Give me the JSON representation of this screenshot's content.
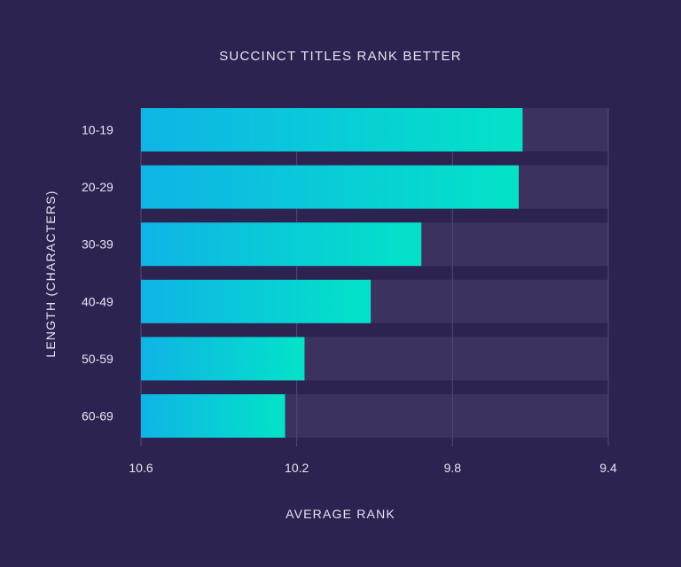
{
  "colors": {
    "background": "#2d2350",
    "track": "#3b3260",
    "grid": "#55497a",
    "bar_start": "#0fb4e6",
    "bar_end": "#03e3c8",
    "text": "#e7e4f1"
  },
  "chart_data": {
    "type": "bar",
    "orientation": "horizontal",
    "title": "SUCCINCT TITLES RANK BETTER",
    "xlabel": "AVERAGE RANK",
    "ylabel": "LENGTH (CHARACTERS)",
    "categories": [
      "10-19",
      "20-29",
      "30-39",
      "40-49",
      "50-59",
      "60-69"
    ],
    "values": [
      9.62,
      9.63,
      9.88,
      10.01,
      10.18,
      10.23
    ],
    "xlim": [
      10.6,
      9.4
    ],
    "x_reversed": true,
    "xticks": [
      10.6,
      10.2,
      9.8,
      9.4
    ],
    "xtick_labels": [
      "10.6",
      "10.2",
      "9.8",
      "9.4"
    ],
    "grid": true,
    "legend": "none"
  }
}
